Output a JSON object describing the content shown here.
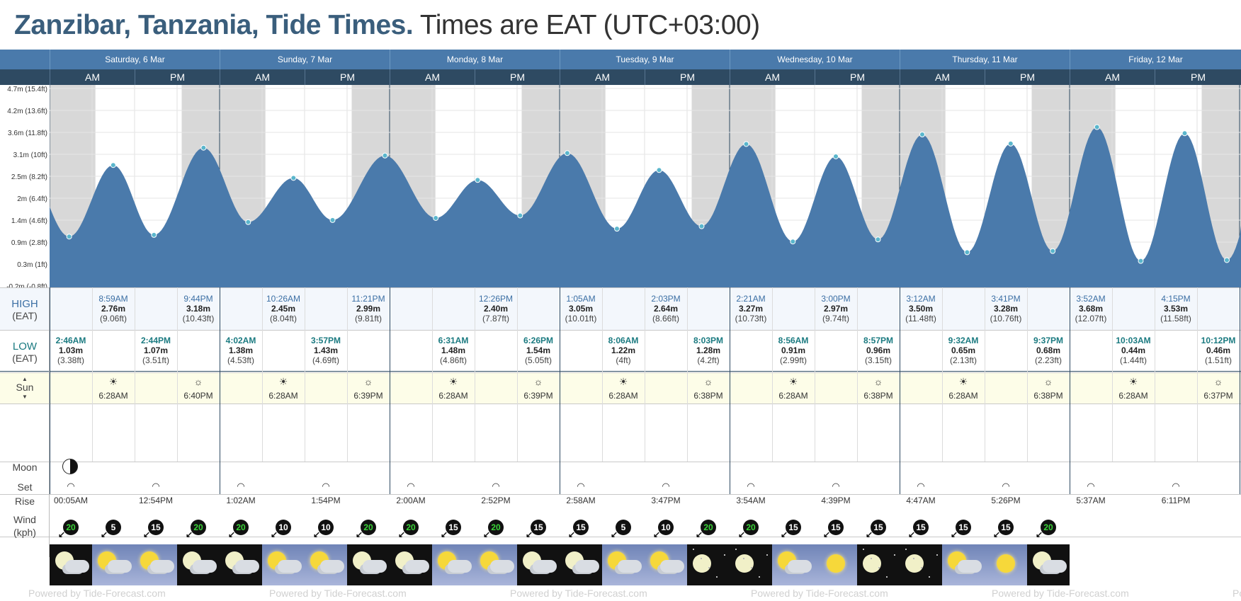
{
  "title": {
    "place": "Zanzibar, Tanzania, Tide Times.",
    "tz": "Times are EAT (UTC+03:00)"
  },
  "days": [
    {
      "label": "Saturday, 6 Mar"
    },
    {
      "label": "Sunday, 7 Mar"
    },
    {
      "label": "Monday, 8 Mar"
    },
    {
      "label": "Tuesday, 9 Mar"
    },
    {
      "label": "Wednesday, 10 Mar"
    },
    {
      "label": "Thursday, 11 Mar"
    },
    {
      "label": "Friday, 12 Mar"
    }
  ],
  "am": "AM",
  "pm": "PM",
  "yaxis": [
    "4.7m (15.4ft)",
    "4.2m (13.6ft)",
    "3.6m (11.8ft)",
    "3.1m (10ft)",
    "2.5m (8.2ft)",
    "2m (6.4ft)",
    "1.4m (4.6ft)",
    "0.9m (2.8ft)",
    "0.3m (1ft)",
    "-0.2m (-0.8ft)"
  ],
  "labels": {
    "high": "HIGH",
    "high_tz": "(EAT)",
    "low": "LOW",
    "low_tz": "(EAT)",
    "sun": "Sun",
    "moon": "Moon",
    "set": "Set",
    "rise": "Rise",
    "wind": "Wind",
    "wind_unit": "(kph)"
  },
  "highs": [
    {
      "t": "8:59AM",
      "m": "2.76m",
      "ft": "(9.06ft)"
    },
    {
      "t": "9:44PM",
      "m": "3.18m",
      "ft": "(10.43ft)"
    },
    {
      "t": "10:26AM",
      "m": "2.45m",
      "ft": "(8.04ft)"
    },
    {
      "t": "11:21PM",
      "m": "2.99m",
      "ft": "(9.81ft)"
    },
    {
      "t": "12:26PM",
      "m": "2.40m",
      "ft": "(7.87ft)"
    },
    {
      "t": "1:05AM",
      "m": "3.05m",
      "ft": "(10.01ft)"
    },
    {
      "t": "2:03PM",
      "m": "2.64m",
      "ft": "(8.66ft)"
    },
    {
      "t": "2:21AM",
      "m": "3.27m",
      "ft": "(10.73ft)"
    },
    {
      "t": "3:00PM",
      "m": "2.97m",
      "ft": "(9.74ft)"
    },
    {
      "t": "3:12AM",
      "m": "3.50m",
      "ft": "(11.48ft)"
    },
    {
      "t": "3:41PM",
      "m": "3.28m",
      "ft": "(10.76ft)"
    },
    {
      "t": "3:52AM",
      "m": "3.68m",
      "ft": "(12.07ft)"
    },
    {
      "t": "4:15PM",
      "m": "3.53m",
      "ft": "(11.58ft)"
    }
  ],
  "lows": [
    {
      "t": "2:46AM",
      "m": "1.03m",
      "ft": "(3.38ft)"
    },
    {
      "t": "2:44PM",
      "m": "1.07m",
      "ft": "(3.51ft)"
    },
    {
      "t": "4:02AM",
      "m": "1.38m",
      "ft": "(4.53ft)"
    },
    {
      "t": "3:57PM",
      "m": "1.43m",
      "ft": "(4.69ft)"
    },
    {
      "t": "6:31AM",
      "m": "1.48m",
      "ft": "(4.86ft)"
    },
    {
      "t": "6:26PM",
      "m": "1.54m",
      "ft": "(5.05ft)"
    },
    {
      "t": "8:06AM",
      "m": "1.22m",
      "ft": "(4ft)"
    },
    {
      "t": "8:03PM",
      "m": "1.28m",
      "ft": "(4.2ft)"
    },
    {
      "t": "8:56AM",
      "m": "0.91m",
      "ft": "(2.99ft)"
    },
    {
      "t": "8:57PM",
      "m": "0.96m",
      "ft": "(3.15ft)"
    },
    {
      "t": "9:32AM",
      "m": "0.65m",
      "ft": "(2.13ft)"
    },
    {
      "t": "9:37PM",
      "m": "0.68m",
      "ft": "(2.23ft)"
    },
    {
      "t": "10:03AM",
      "m": "0.44m",
      "ft": "(1.44ft)"
    },
    {
      "t": "10:12PM",
      "m": "0.46m",
      "ft": "(1.51ft)"
    }
  ],
  "sun": [
    {
      "t": "6:28AM",
      "kind": "rise"
    },
    {
      "t": "6:40PM",
      "kind": "set"
    },
    {
      "t": "6:28AM",
      "kind": "rise"
    },
    {
      "t": "6:39PM",
      "kind": "set"
    },
    {
      "t": "6:28AM",
      "kind": "rise"
    },
    {
      "t": "6:39PM",
      "kind": "set"
    },
    {
      "t": "6:28AM",
      "kind": "rise"
    },
    {
      "t": "6:38PM",
      "kind": "set"
    },
    {
      "t": "6:28AM",
      "kind": "rise"
    },
    {
      "t": "6:38PM",
      "kind": "set"
    },
    {
      "t": "6:28AM",
      "kind": "rise"
    },
    {
      "t": "6:38PM",
      "kind": "set"
    },
    {
      "t": "6:28AM",
      "kind": "rise"
    },
    {
      "t": "6:37PM",
      "kind": "set"
    }
  ],
  "moon": [
    {
      "t": "00:05AM",
      "kind": "set"
    },
    {
      "t": "12:54PM",
      "kind": "rise"
    },
    {
      "t": "1:02AM",
      "kind": "set"
    },
    {
      "t": "1:54PM",
      "kind": "rise"
    },
    {
      "t": "2:00AM",
      "kind": "set"
    },
    {
      "t": "2:52PM",
      "kind": "rise"
    },
    {
      "t": "2:58AM",
      "kind": "set"
    },
    {
      "t": "3:47PM",
      "kind": "rise"
    },
    {
      "t": "3:54AM",
      "kind": "set"
    },
    {
      "t": "4:39PM",
      "kind": "rise"
    },
    {
      "t": "4:47AM",
      "kind": "set"
    },
    {
      "t": "5:26PM",
      "kind": "rise"
    },
    {
      "t": "5:37AM",
      "kind": "set"
    },
    {
      "t": "6:11PM",
      "kind": "rise"
    }
  ],
  "moon_phase": "last-quarter-moon-icon",
  "wind": [
    {
      "v": "20",
      "g": true
    },
    {
      "v": "5",
      "g": false
    },
    {
      "v": "15",
      "g": false
    },
    {
      "v": "20",
      "g": true
    },
    {
      "v": "20",
      "g": true
    },
    {
      "v": "10",
      "g": false
    },
    {
      "v": "10",
      "g": false
    },
    {
      "v": "20",
      "g": true
    },
    {
      "v": "20",
      "g": true
    },
    {
      "v": "15",
      "g": false
    },
    {
      "v": "20",
      "g": true
    },
    {
      "v": "15",
      "g": false
    },
    {
      "v": "15",
      "g": false
    },
    {
      "v": "5",
      "g": false
    },
    {
      "v": "10",
      "g": false
    },
    {
      "v": "20",
      "g": true
    },
    {
      "v": "20",
      "g": true
    },
    {
      "v": "15",
      "g": false
    },
    {
      "v": "15",
      "g": false
    },
    {
      "v": "15",
      "g": false
    },
    {
      "v": "15",
      "g": false
    },
    {
      "v": "15",
      "g": false
    },
    {
      "v": "15",
      "g": false
    },
    {
      "v": "20",
      "g": true
    }
  ],
  "weather": [
    "night-partly-cloudy",
    "day-partly-cloudy",
    "day-partly-cloudy",
    "night-partly-cloudy",
    "night-partly-cloudy",
    "day-partly-cloudy",
    "day-partly-cloudy",
    "night-partly-cloudy",
    "night-partly-cloudy",
    "day-partly-cloudy",
    "day-partly-cloudy",
    "night-partly-cloudy",
    "night-partly-cloudy",
    "day-partly-cloudy",
    "day-partly-cloudy",
    "night-clear",
    "night-clear",
    "day-partly-cloudy",
    "day-sunny",
    "night-clear",
    "night-clear",
    "day-partly-cloudy",
    "day-sunny",
    "night-partly-cloudy"
  ],
  "footer": "Powered by Tide-Forecast.com",
  "colors": {
    "header": "#4a7aab",
    "subheader": "#2e4a62",
    "tide_fill": "#4a7aab",
    "title": "#3a5e7c"
  },
  "chart_data": {
    "type": "area",
    "title": "Zanzibar, Tanzania, Tide Times.",
    "ylabel": "",
    "ylim": [
      -0.2,
      4.7
    ],
    "series": [
      {
        "values_m": [
          1.03,
          2.76,
          1.07,
          3.18,
          1.38,
          2.45,
          1.43,
          2.99,
          1.48,
          2.4,
          1.54,
          3.05,
          1.22,
          2.64,
          1.28,
          3.27,
          0.91,
          2.97,
          0.96,
          3.5,
          0.65,
          3.28,
          0.68,
          3.68,
          0.44,
          3.53,
          0.46
        ],
        "times": [
          "Sat 2:46AM",
          "Sat 8:59AM",
          "Sat 2:44PM",
          "Sat 9:44PM",
          "Sun 4:02AM",
          "Sun 10:26AM",
          "Sun 3:57PM",
          "Sun 11:21PM",
          "Mon 6:31AM",
          "Mon 12:26PM",
          "Mon 6:26PM",
          "Tue 1:05AM",
          "Tue 8:06AM",
          "Tue 2:03PM",
          "Tue 8:03PM",
          "Wed 2:21AM",
          "Wed 8:56AM",
          "Wed 3:00PM",
          "Wed 8:57PM",
          "Thu 3:12AM",
          "Thu 9:32AM",
          "Thu 3:41PM",
          "Thu 9:37PM",
          "Fri 3:52AM",
          "Fri 10:03AM",
          "Fri 4:15PM",
          "Fri 10:12PM"
        ]
      }
    ]
  }
}
